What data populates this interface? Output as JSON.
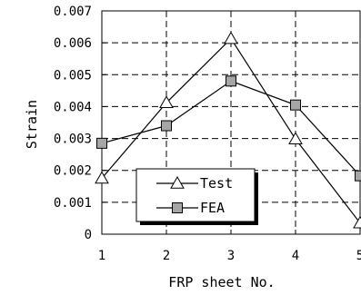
{
  "chart_data": {
    "type": "line",
    "xlabel": "FRP sheet No.",
    "ylabel": "Strain",
    "x": [
      1,
      2,
      3,
      4,
      5
    ],
    "xlim": [
      1,
      5
    ],
    "ylim": [
      0,
      0.007
    ],
    "x_ticks": [
      "1",
      "2",
      "3",
      "4",
      "5"
    ],
    "y_ticks": [
      "0",
      "0.001",
      "0.002",
      "0.003",
      "0.004",
      "0.005",
      "0.006",
      "0.007"
    ],
    "grid": true,
    "grid_style": "dashed",
    "legend_position": "bottom-center",
    "series": [
      {
        "name": "Test",
        "marker": "triangle",
        "marker_fill": "#ffffff",
        "values": [
          0.00175,
          0.00412,
          0.00613,
          0.00298,
          0.00035
        ]
      },
      {
        "name": "FEA",
        "marker": "square",
        "marker_fill": "#a6a6a6",
        "values": [
          0.00285,
          0.0034,
          0.0048,
          0.00405,
          0.00183
        ]
      }
    ]
  }
}
